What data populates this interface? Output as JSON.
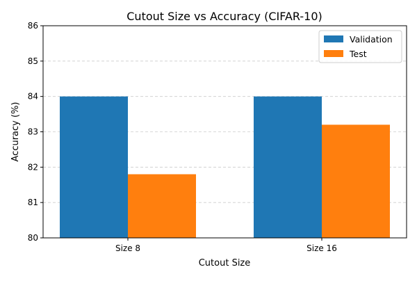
{
  "chart_data": {
    "type": "bar",
    "title": "Cutout Size vs Accuracy (CIFAR-10)",
    "xlabel": "Cutout Size",
    "ylabel": "Accuracy (%)",
    "categories": [
      "Size 8",
      "Size 16"
    ],
    "series": [
      {
        "name": "Validation",
        "values": [
          84.0,
          84.0
        ],
        "color": "#1f77b4"
      },
      {
        "name": "Test",
        "values": [
          81.8,
          83.2
        ],
        "color": "#ff7f0e"
      }
    ],
    "ylim": [
      80,
      86
    ],
    "yticks": [
      "80",
      "81",
      "82",
      "83",
      "84",
      "85",
      "86"
    ],
    "grid": {
      "y": true,
      "style": "dashed",
      "color": "#cccccc"
    },
    "legend_position": "top-right"
  }
}
